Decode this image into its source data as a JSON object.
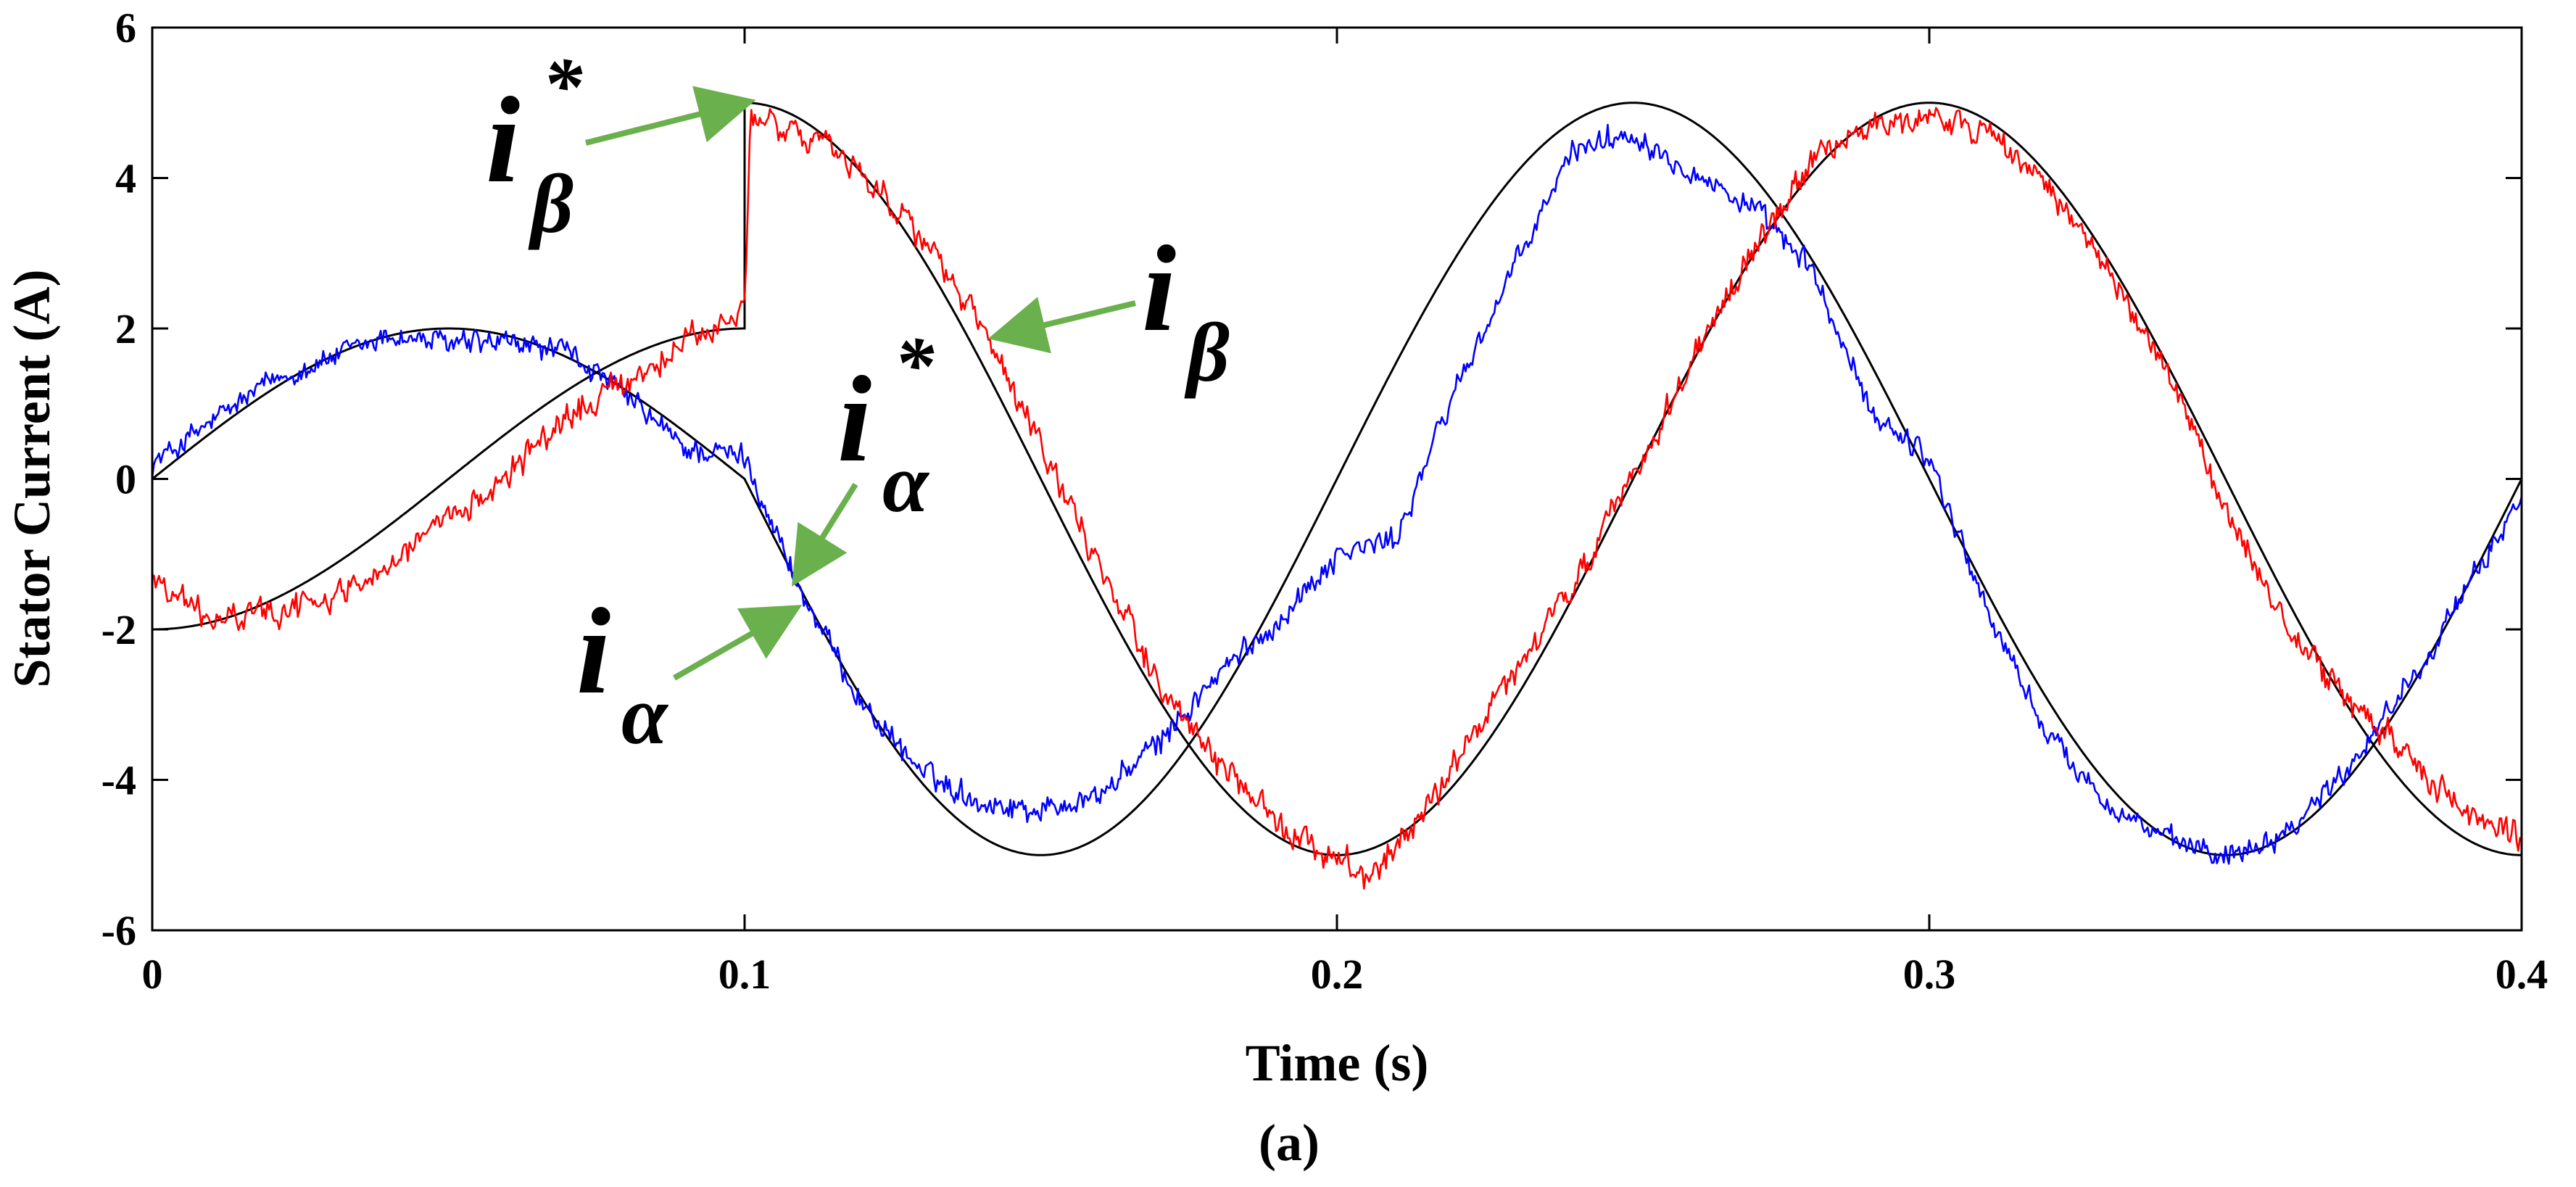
{
  "chart_data": {
    "type": "line",
    "title": "",
    "xlabel": "Time (s)",
    "ylabel": "Stator Current (A)",
    "caption": "(a)",
    "xlim": [
      0,
      0.4
    ],
    "ylim": [
      -6,
      6
    ],
    "x_ticks": [
      0,
      0.1,
      0.2,
      0.3,
      0.4
    ],
    "x_tick_labels": [
      "0",
      "0.1",
      "0.2",
      "0.3",
      "0.4"
    ],
    "y_ticks": [
      -6,
      -4,
      -2,
      0,
      2,
      4,
      6
    ],
    "y_tick_labels": [
      "-6",
      "-4",
      "-2",
      "0",
      "2",
      "4",
      "6"
    ],
    "grid": false,
    "colors": {
      "i_alpha": "#0000ff",
      "i_beta": "#ff0000",
      "reference": "#000000",
      "arrow": "#6ab04c"
    },
    "series": [
      {
        "name": "i_alpha_ref",
        "label": "iα*",
        "color": "#000000",
        "description": "Reference alpha current: amplitude 2 A for t < 0.1 s, 5 A afterward, period 0.2 s (5 Hz), zero at t=0",
        "amplitude_before_step": 2,
        "amplitude_after_step": 5,
        "step_time": 0.1,
        "frequency_hz": 5,
        "phase": "sine"
      },
      {
        "name": "i_beta_ref",
        "label": "iβ*",
        "color": "#000000",
        "description": "Reference beta current: -cos waveform, -2 A at t=0, steps to 5 A at t=0.1 s",
        "amplitude_before_step": 2,
        "amplitude_after_step": 5,
        "step_time": 0.1,
        "frequency_hz": 5,
        "phase": "negative-cosine"
      },
      {
        "name": "i_alpha",
        "label": "iα",
        "color": "#0000ff",
        "description": "Measured alpha current tracking iα* with noise",
        "noise_amplitude": 0.22,
        "samples": [
          [
            0.0,
            0.2
          ],
          [
            0.02,
            1.3
          ],
          [
            0.04,
            1.9
          ],
          [
            0.05,
            1.8
          ],
          [
            0.06,
            1.8
          ],
          [
            0.07,
            1.7
          ],
          [
            0.08,
            1.1
          ],
          [
            0.09,
            0.4
          ],
          [
            0.1,
            0.3
          ],
          [
            0.11,
            -1.6
          ],
          [
            0.12,
            -3.0
          ],
          [
            0.13,
            -3.9
          ],
          [
            0.14,
            -4.3
          ],
          [
            0.15,
            -4.4
          ],
          [
            0.16,
            -4.2
          ],
          [
            0.17,
            -3.5
          ],
          [
            0.18,
            -2.6
          ],
          [
            0.19,
            -1.9
          ],
          [
            0.2,
            -1.0
          ],
          [
            0.21,
            -0.8
          ],
          [
            0.22,
            1.2
          ],
          [
            0.23,
            2.8
          ],
          [
            0.24,
            4.4
          ],
          [
            0.25,
            4.6
          ],
          [
            0.26,
            4.1
          ],
          [
            0.27,
            3.6
          ],
          [
            0.28,
            2.8
          ],
          [
            0.29,
            0.9
          ],
          [
            0.3,
            0.3
          ],
          [
            0.31,
            -1.8
          ],
          [
            0.32,
            -3.4
          ],
          [
            0.33,
            -4.3
          ],
          [
            0.34,
            -4.8
          ],
          [
            0.35,
            -5.0
          ],
          [
            0.36,
            -4.7
          ],
          [
            0.37,
            -3.9
          ],
          [
            0.38,
            -2.8
          ],
          [
            0.39,
            -1.6
          ],
          [
            0.4,
            -0.2
          ]
        ]
      },
      {
        "name": "i_beta",
        "label": "iβ",
        "color": "#ff0000",
        "description": "Measured beta current tracking iβ* with noise, lagging after t=0.3 s",
        "noise_amplitude": 0.25,
        "samples": [
          [
            0.0,
            -1.3
          ],
          [
            0.01,
            -1.9
          ],
          [
            0.03,
            -1.6
          ],
          [
            0.05,
            -0.6
          ],
          [
            0.07,
            0.8
          ],
          [
            0.09,
            1.8
          ],
          [
            0.1,
            2.2
          ],
          [
            0.101,
            4.8
          ],
          [
            0.11,
            4.6
          ],
          [
            0.12,
            4.1
          ],
          [
            0.13,
            3.2
          ],
          [
            0.14,
            2.0
          ],
          [
            0.15,
            0.4
          ],
          [
            0.16,
            -1.2
          ],
          [
            0.17,
            -2.7
          ],
          [
            0.18,
            -3.8
          ],
          [
            0.19,
            -4.6
          ],
          [
            0.2,
            -5.0
          ],
          [
            0.205,
            -5.3
          ],
          [
            0.21,
            -4.9
          ],
          [
            0.22,
            -3.8
          ],
          [
            0.23,
            -2.6
          ],
          [
            0.24,
            -1.4
          ],
          [
            0.25,
            0.0
          ],
          [
            0.26,
            1.6
          ],
          [
            0.27,
            3.0
          ],
          [
            0.28,
            4.2
          ],
          [
            0.29,
            4.7
          ],
          [
            0.3,
            4.8
          ],
          [
            0.31,
            4.6
          ],
          [
            0.32,
            3.9
          ],
          [
            0.33,
            2.8
          ],
          [
            0.34,
            1.4
          ],
          [
            0.35,
            -0.4
          ],
          [
            0.36,
            -1.9
          ],
          [
            0.37,
            -2.9
          ],
          [
            0.38,
            -3.6
          ],
          [
            0.39,
            -4.4
          ],
          [
            0.4,
            -4.8
          ]
        ]
      }
    ],
    "annotations": [
      {
        "id": "anno-i-beta-ref",
        "base": "i",
        "sub": "β",
        "sup": "*",
        "points_to": [
          0.1,
          5.0
        ]
      },
      {
        "id": "anno-i-beta",
        "base": "i",
        "sub": "β",
        "sup": "",
        "points_to": [
          0.143,
          1.9
        ]
      },
      {
        "id": "anno-i-alpha-ref",
        "base": "i",
        "sub": "α",
        "sup": "*",
        "points_to": [
          0.109,
          -1.3
        ]
      },
      {
        "id": "anno-i-alpha",
        "base": "i",
        "sub": "α",
        "sup": "",
        "points_to": [
          0.108,
          -1.75
        ]
      }
    ]
  }
}
